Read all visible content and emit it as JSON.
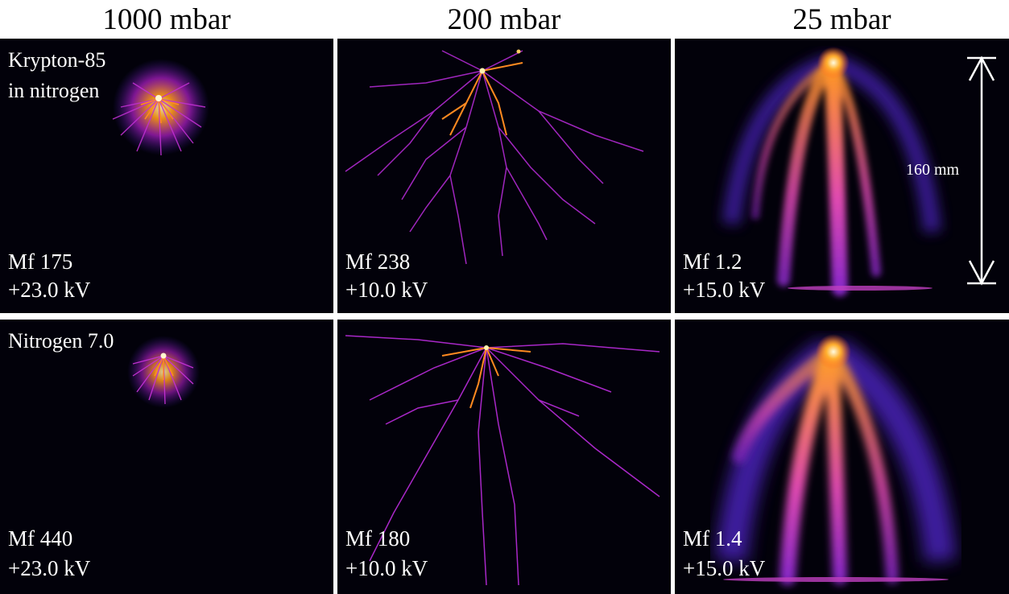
{
  "column_headers": [
    "1000 mbar",
    "200 mbar",
    "25 mbar"
  ],
  "rows": [
    {
      "gas_label_lines": [
        "Krypton-85",
        "in nitrogen"
      ],
      "panels": [
        {
          "mf": "Mf 175",
          "voltage": "+23.0 kV"
        },
        {
          "mf": "Mf 238",
          "voltage": "+10.0 kV"
        },
        {
          "mf": "Mf 1.2",
          "voltage": "+15.0 kV"
        }
      ]
    },
    {
      "gas_label_lines": [
        "Nitrogen 7.0"
      ],
      "panels": [
        {
          "mf": "Mf 440",
          "voltage": "+23.0 kV"
        },
        {
          "mf": "Mf 180",
          "voltage": "+10.0 kV"
        },
        {
          "mf": "Mf 1.4",
          "voltage": "+15.0 kV"
        }
      ]
    }
  ],
  "scale_bar": {
    "label": "160 mm"
  },
  "colors": {
    "background": "#02010a",
    "streamer_core": "#fff6c8",
    "streamer_mid": "#ff9a1a",
    "streamer_outer": "#b01fc8",
    "diffuse_glow": "#3a1aa0"
  }
}
